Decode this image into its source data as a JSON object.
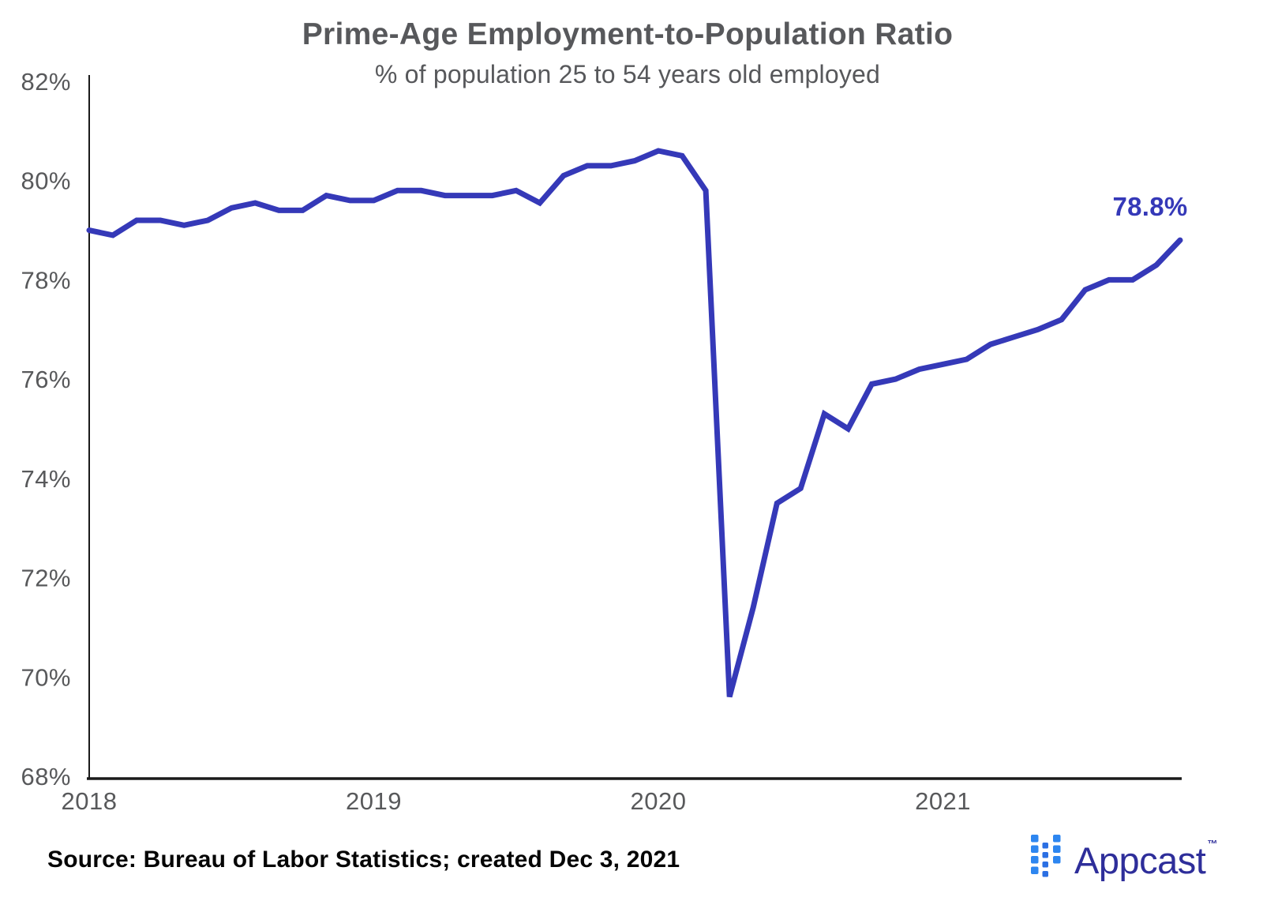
{
  "chart_data": {
    "type": "line",
    "title": "Prime-Age Employment-to-Population Ratio",
    "subtitle": "% of population 25 to 54 years old employed",
    "x_range": "Jan 2018 - Nov 2021",
    "frequency": "monthly",
    "x_tick_labels": [
      "2018",
      "2019",
      "2020",
      "2021"
    ],
    "ylim": [
      68,
      82
    ],
    "y_tick_labels": [
      "68%",
      "70%",
      "72%",
      "74%",
      "76%",
      "78%",
      "80%",
      "82%"
    ],
    "grid": false,
    "legend": false,
    "series": [
      {
        "name": "Prime-age (25-54) employment-to-population ratio",
        "values_by_year": {
          "2018": [
            79.0,
            78.9,
            79.2,
            79.2,
            79.1,
            79.2,
            79.45,
            79.55,
            79.4,
            79.4,
            79.7,
            79.6
          ],
          "2019": [
            79.6,
            79.8,
            79.8,
            79.7,
            79.7,
            79.7,
            79.8,
            79.55,
            80.1,
            80.3,
            80.3,
            80.4
          ],
          "2020": [
            80.6,
            80.5,
            79.8,
            69.6,
            71.4,
            73.5,
            73.8,
            75.3,
            75.0,
            75.9,
            76.0,
            76.2
          ],
          "2021": [
            76.3,
            76.4,
            76.7,
            76.85,
            77.0,
            77.2,
            77.8,
            78.0,
            78.0,
            78.3,
            78.8
          ]
        }
      }
    ],
    "end_point_label": "78.8%",
    "colors": {
      "line": "#3539b8",
      "annotation": "#3539b8",
      "axis": "#1a1a1a",
      "tick_label": "#58595b"
    }
  },
  "footer": {
    "source_note": "Source: Bureau of Labor Statistics; created Dec 3, 2021",
    "logo": {
      "wordmark": "Appcast",
      "trademark": "™",
      "colors": {
        "mark": "#2d86f0",
        "mark_accent": "#2b6fe3",
        "wordmark": "#2e2e9a"
      }
    }
  }
}
